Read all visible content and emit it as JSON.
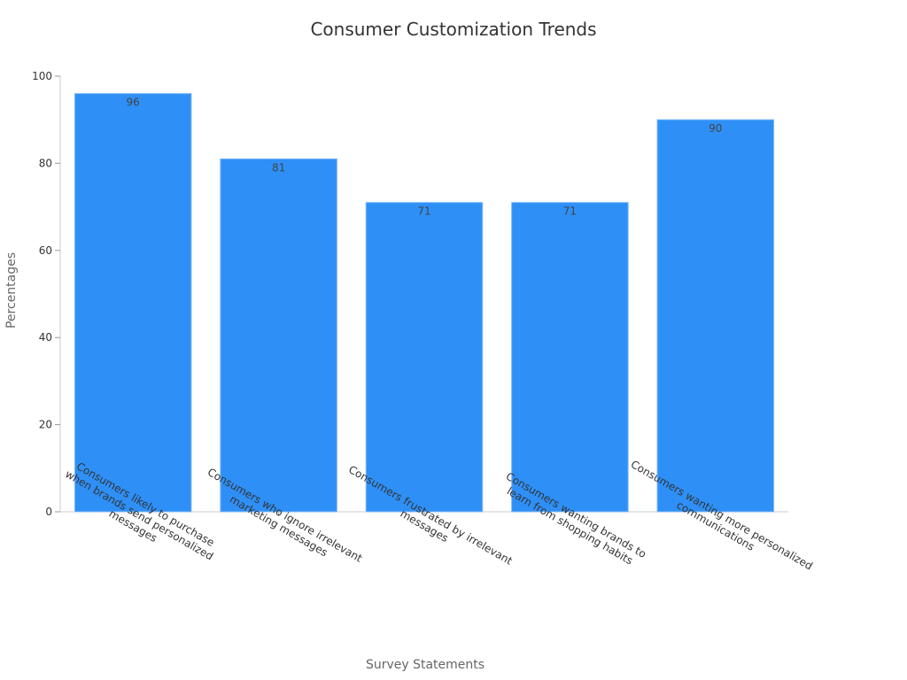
{
  "chart_data": {
    "type": "bar",
    "title": "Consumer Customization Trends",
    "xlabel": "Survey Statements",
    "ylabel": "Percentages",
    "categories": [
      [
        "Consumers likely to purchase",
        "when brands send personalized",
        "messages"
      ],
      [
        "Consumers who ignore irrelevant",
        "marketing messages"
      ],
      [
        "Consumers frustrated by irrelevant",
        "messages"
      ],
      [
        "Consumers wanting brands to",
        "learn from shopping habits"
      ],
      [
        "Consumers wanting more personalized",
        "communications"
      ]
    ],
    "values": [
      96,
      81,
      71,
      71,
      90
    ],
    "ylim": [
      0,
      100
    ],
    "yticks": [
      0,
      20,
      40,
      60,
      80,
      100
    ],
    "bar_color": "#2e90f7",
    "bar_edge_color": "#7fb8f5",
    "grid": false,
    "legend": "none"
  }
}
